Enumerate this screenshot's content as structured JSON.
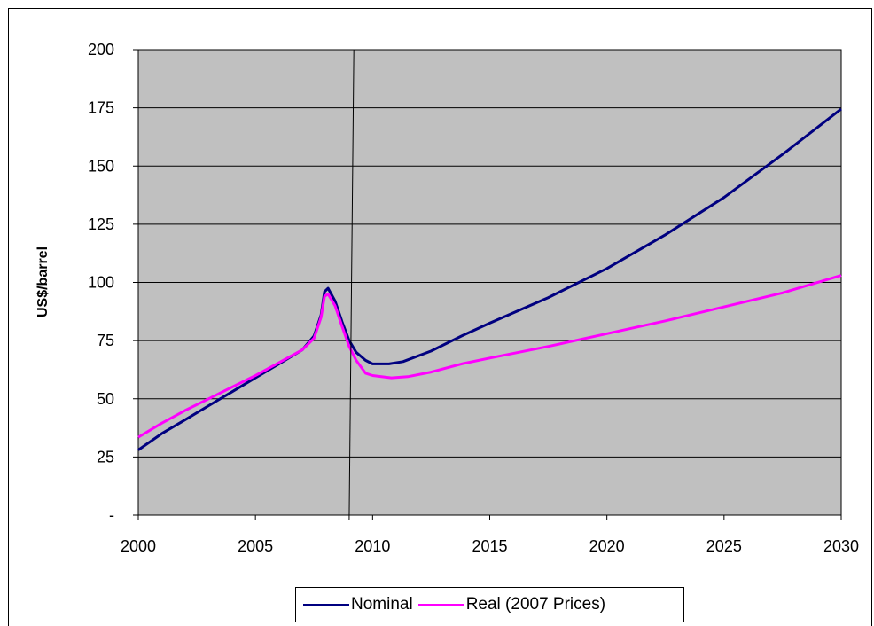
{
  "chart_data": {
    "type": "line",
    "title": "",
    "xlabel": "",
    "ylabel": "US$/barrel",
    "xlim": [
      2000,
      2030
    ],
    "ylim": [
      0,
      200
    ],
    "x_ticks": [
      2000,
      2005,
      2010,
      2015,
      2020,
      2025,
      2030
    ],
    "y_ticks": [
      0,
      25,
      50,
      75,
      100,
      125,
      150,
      175,
      200
    ],
    "y_tick_labels": [
      "-",
      "25",
      "50",
      "75",
      "100",
      "125",
      "150",
      "175",
      "200"
    ],
    "grid": "horizontal",
    "plot_background": "#c0c0c0",
    "vertical_marker_line": [
      2009.2,
      2009.0
    ],
    "legend_position": "bottom",
    "series": [
      {
        "name": "Nominal",
        "color": "#000080",
        "points": [
          [
            2000,
            28
          ],
          [
            2001,
            35
          ],
          [
            2002,
            41
          ],
          [
            2003,
            47
          ],
          [
            2004,
            53
          ],
          [
            2005,
            59
          ],
          [
            2006,
            65
          ],
          [
            2007,
            71
          ],
          [
            2007.5,
            77
          ],
          [
            2007.8,
            86
          ],
          [
            2007.95,
            96
          ],
          [
            2008.1,
            97.5
          ],
          [
            2008.4,
            92
          ],
          [
            2008.7,
            83
          ],
          [
            2009.0,
            75
          ],
          [
            2009.3,
            70
          ],
          [
            2009.7,
            66.5
          ],
          [
            2010,
            65
          ],
          [
            2010.7,
            65
          ],
          [
            2011.3,
            66
          ],
          [
            2012.5,
            70.5
          ],
          [
            2013.8,
            77
          ],
          [
            2015,
            82.5
          ],
          [
            2017.5,
            93.5
          ],
          [
            2020,
            106
          ],
          [
            2022.5,
            120.5
          ],
          [
            2025,
            136.5
          ],
          [
            2027.5,
            155
          ],
          [
            2030,
            174.5
          ]
        ]
      },
      {
        "name": "Real (2007 Prices)",
        "color": "#ff00ff",
        "points": [
          [
            2000,
            33.5
          ],
          [
            2001,
            39.5
          ],
          [
            2002,
            45
          ],
          [
            2003,
            50
          ],
          [
            2004,
            55
          ],
          [
            2005,
            60
          ],
          [
            2006,
            65.5
          ],
          [
            2007,
            71
          ],
          [
            2007.5,
            76
          ],
          [
            2007.8,
            85
          ],
          [
            2007.95,
            94
          ],
          [
            2008.1,
            95
          ],
          [
            2008.4,
            90
          ],
          [
            2008.7,
            81
          ],
          [
            2009.0,
            72.5
          ],
          [
            2009.3,
            66.5
          ],
          [
            2009.7,
            61
          ],
          [
            2010,
            60
          ],
          [
            2010.8,
            59
          ],
          [
            2011.5,
            59.5
          ],
          [
            2012.5,
            61.5
          ],
          [
            2013.8,
            65
          ],
          [
            2015,
            67.5
          ],
          [
            2017.5,
            72.5
          ],
          [
            2020,
            78
          ],
          [
            2022.5,
            83.5
          ],
          [
            2025,
            89.5
          ],
          [
            2027.5,
            95.5
          ],
          [
            2030,
            103
          ]
        ]
      }
    ]
  }
}
